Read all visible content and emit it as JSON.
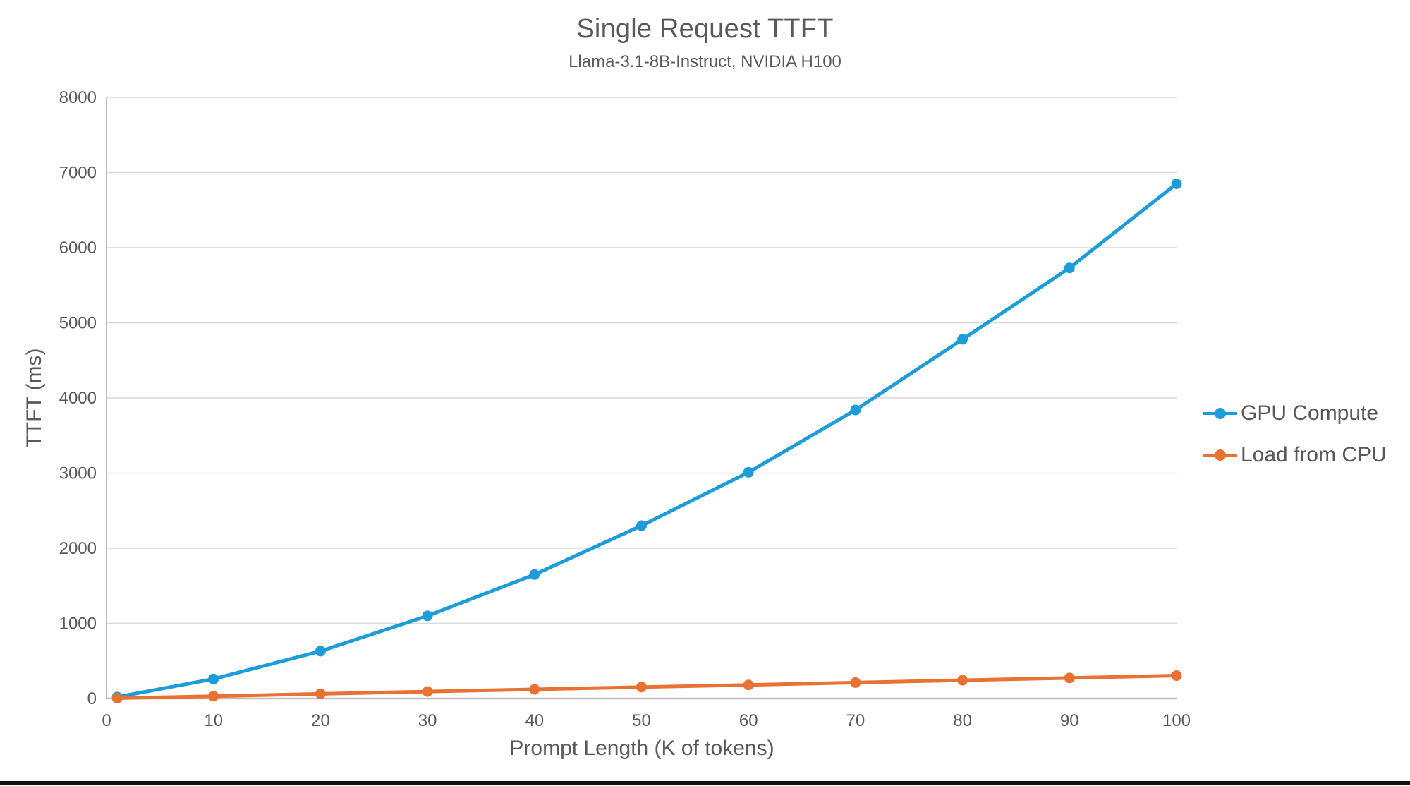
{
  "page": {
    "background": "#ffffff",
    "bottom_edge_color": "#111111"
  },
  "chart_data": {
    "type": "line",
    "title": "Single Request TTFT",
    "subtitle": "Llama-3.1-8B-Instruct, NVIDIA H100",
    "xlabel": "Prompt Length (K of tokens)",
    "ylabel": "TTFT (ms)",
    "xlim": [
      0,
      100
    ],
    "ylim": [
      0,
      8000
    ],
    "xticks": [
      0,
      10,
      20,
      30,
      40,
      50,
      60,
      70,
      80,
      90,
      100
    ],
    "yticks": [
      0,
      1000,
      2000,
      3000,
      4000,
      5000,
      6000,
      7000,
      8000
    ],
    "grid": "horizontal",
    "legend_position": "right",
    "x": [
      1,
      10,
      20,
      30,
      40,
      50,
      60,
      70,
      80,
      90,
      100
    ],
    "series": [
      {
        "name": "GPU Compute",
        "color": "#1C9CD9",
        "values": [
          20,
          260,
          630,
          1100,
          1650,
          2300,
          3010,
          3840,
          4780,
          5730,
          6850
        ]
      },
      {
        "name": "Load from CPU",
        "color": "#E97132",
        "values": [
          5,
          30,
          62,
          93,
          122,
          152,
          181,
          212,
          243,
          274,
          305
        ]
      }
    ],
    "style": {
      "text_color": "#595959",
      "gridline_color": "#D9D9D9",
      "axis_line_color": "#BFBFBF",
      "marker": "circle"
    }
  }
}
